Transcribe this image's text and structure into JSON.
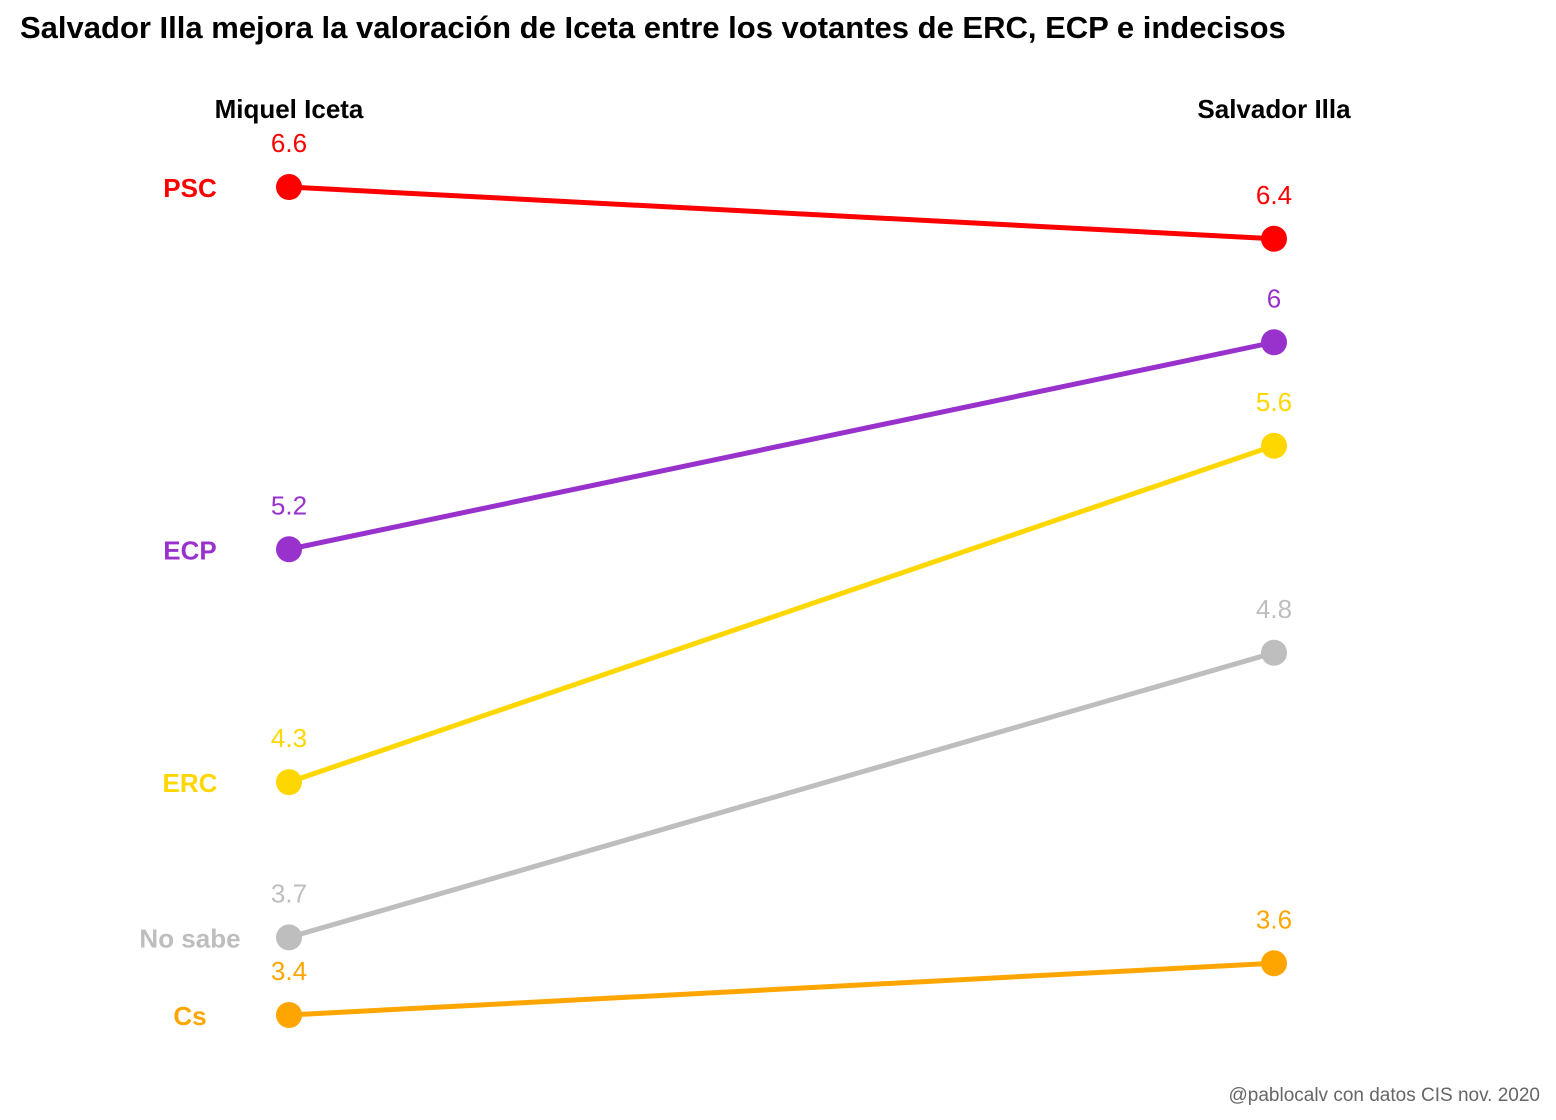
{
  "chart_data": {
    "type": "line",
    "title": "Salvador Illa mejora la valoración de Iceta entre los votantes de ERC, ECP e indecisos",
    "caption": "@pablocalv con datos CIS nov. 2020",
    "x": [
      "Miquel Iceta",
      "Salvador Illa"
    ],
    "series": [
      {
        "name": "PSC",
        "values": [
          6.6,
          6.4
        ],
        "labels": [
          "6.6",
          "6.4"
        ],
        "color": "#ff0000"
      },
      {
        "name": "ECP",
        "values": [
          5.2,
          6.0
        ],
        "labels": [
          "5.2",
          "6"
        ],
        "color": "#9932cc"
      },
      {
        "name": "ERC",
        "values": [
          4.3,
          5.6
        ],
        "labels": [
          "4.3",
          "5.6"
        ],
        "color": "#ffd700"
      },
      {
        "name": "No sabe",
        "values": [
          3.7,
          4.8
        ],
        "labels": [
          "3.7",
          "4.8"
        ],
        "color": "#bebebe"
      },
      {
        "name": "Cs",
        "values": [
          3.4,
          3.6
        ],
        "labels": [
          "3.4",
          "3.6"
        ],
        "color": "#ffa500"
      }
    ],
    "grid": false,
    "legend": "none"
  }
}
